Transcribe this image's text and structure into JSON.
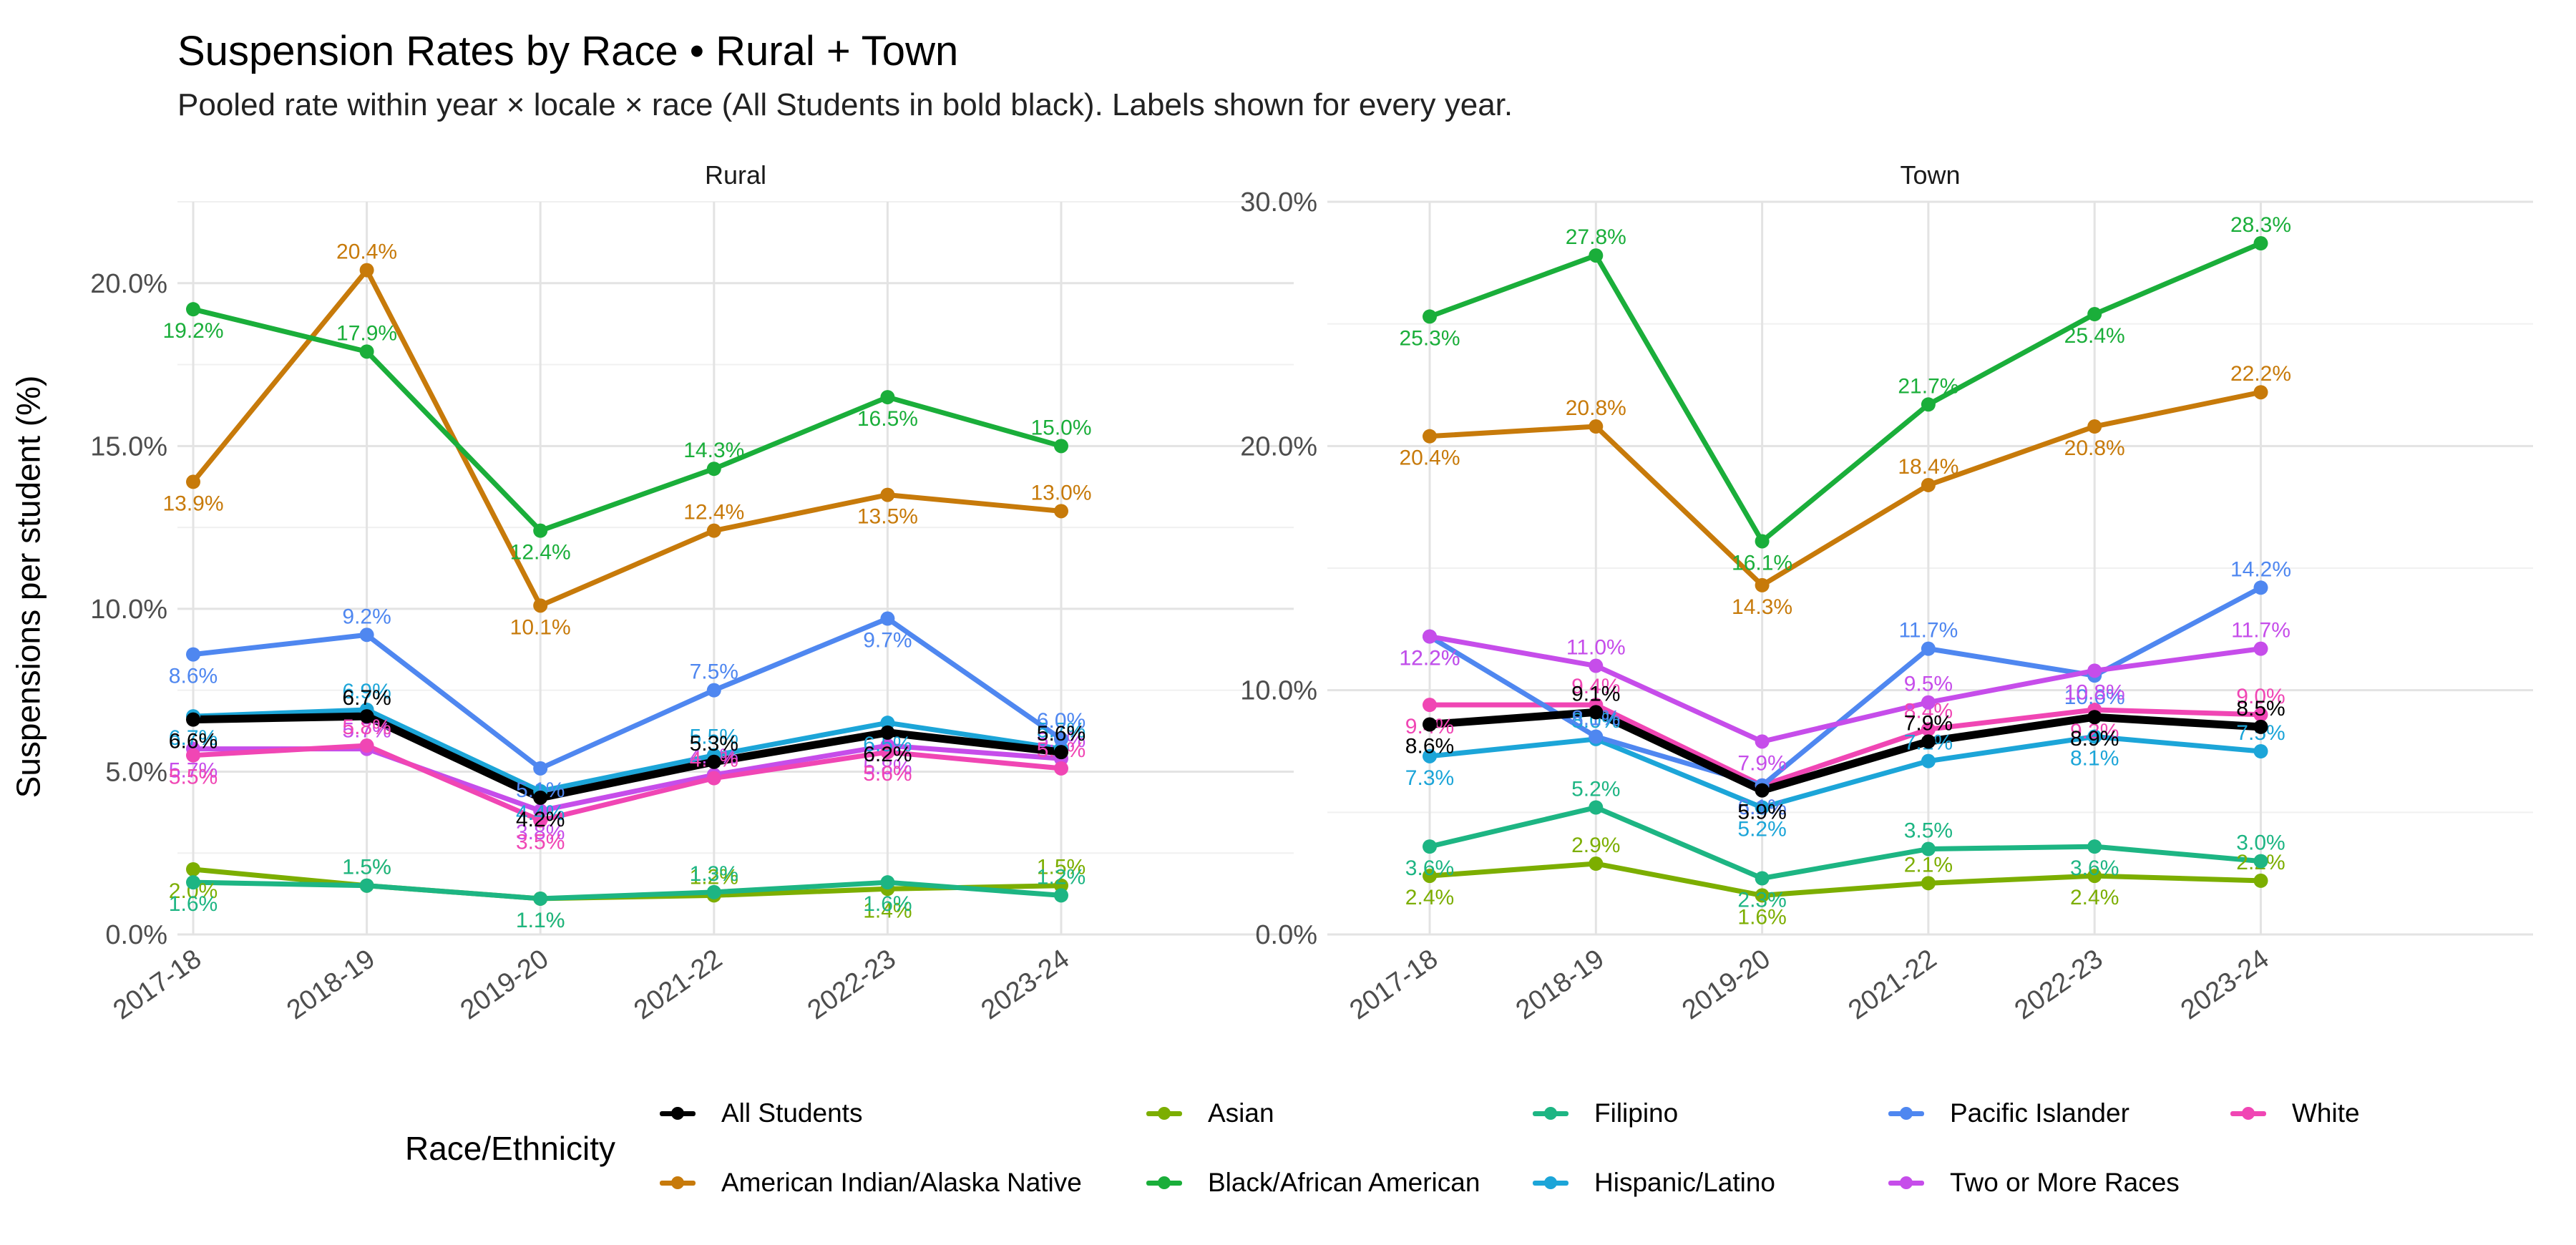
{
  "title": "Suspension Rates by Race • Rural + Town",
  "subtitle": "Pooled rate within year × locale × race (All Students in bold black). Labels shown for every year.",
  "ylabel": "Suspensions per student (%)",
  "legend": {
    "title": "Race/Ethnicity",
    "items": [
      {
        "name": "All Students",
        "color": "#000000"
      },
      {
        "name": "Asian",
        "color": "#7CAE00"
      },
      {
        "name": "Filipino",
        "color": "#1DB583"
      },
      {
        "name": "Pacific Islander",
        "color": "#4F87F0"
      },
      {
        "name": "White",
        "color": "#F046B4"
      },
      {
        "name": "American Indian/Alaska Native",
        "color": "#C77A0A"
      },
      {
        "name": "Black/African American",
        "color": "#1AAE3A"
      },
      {
        "name": "Hispanic/Latino",
        "color": "#1CA5D8"
      },
      {
        "name": "Two or More Races",
        "color": "#C64DEA"
      }
    ]
  },
  "chart_data": [
    {
      "type": "line",
      "panel": "Rural",
      "categories": [
        "2017-18",
        "2018-19",
        "2019-20",
        "2021-22",
        "2022-23",
        "2023-24"
      ],
      "ylim": [
        0,
        22.5
      ],
      "yticks": [
        "0.0%",
        "5.0%",
        "10.0%",
        "15.0%",
        "20.0%"
      ],
      "ytick_values": [
        0,
        5,
        10,
        15,
        20
      ],
      "series": [
        {
          "name": "Asian",
          "values": [
            2.0,
            1.5,
            1.1,
            1.2,
            1.4,
            1.5
          ]
        },
        {
          "name": "Filipino",
          "values": [
            1.6,
            1.5,
            1.1,
            1.3,
            1.6,
            1.2
          ]
        },
        {
          "name": "Two or More Races",
          "values": [
            5.7,
            5.7,
            3.8,
            4.9,
            5.8,
            5.4
          ]
        },
        {
          "name": "White",
          "values": [
            5.5,
            5.8,
            3.5,
            4.8,
            5.6,
            5.1
          ]
        },
        {
          "name": "Hispanic/Latino",
          "values": [
            6.7,
            6.9,
            4.4,
            5.5,
            6.5,
            5.7
          ]
        },
        {
          "name": "Pacific Islander",
          "values": [
            8.6,
            9.2,
            5.1,
            7.5,
            9.7,
            6.0
          ]
        },
        {
          "name": "American Indian/Alaska Native",
          "values": [
            13.9,
            20.4,
            10.1,
            12.4,
            13.5,
            13.0
          ]
        },
        {
          "name": "Black/African American",
          "values": [
            19.2,
            17.9,
            12.4,
            14.3,
            16.5,
            15.0
          ]
        },
        {
          "name": "All Students",
          "values": [
            6.6,
            6.7,
            4.2,
            5.3,
            6.2,
            5.6
          ]
        }
      ]
    },
    {
      "type": "line",
      "panel": "Town",
      "categories": [
        "2017-18",
        "2018-19",
        "2019-20",
        "2021-22",
        "2022-23",
        "2023-24"
      ],
      "ylim": [
        0,
        30
      ],
      "yticks": [
        "0.0%",
        "10.0%",
        "20.0%",
        "30.0%"
      ],
      "ytick_values": [
        0,
        10,
        20,
        30
      ],
      "series": [
        {
          "name": "Asian",
          "values": [
            2.4,
            2.9,
            1.6,
            2.1,
            2.4,
            2.2
          ]
        },
        {
          "name": "Filipino",
          "values": [
            3.6,
            5.2,
            2.3,
            3.5,
            3.6,
            3.0
          ]
        },
        {
          "name": "Hispanic/Latino",
          "values": [
            7.3,
            8.0,
            5.2,
            7.1,
            8.1,
            7.5
          ]
        },
        {
          "name": "White",
          "values": [
            9.4,
            9.4,
            6.1,
            8.4,
            9.2,
            9.0
          ]
        },
        {
          "name": "Pacific Islander",
          "values": [
            12.2,
            8.1,
            6.1,
            11.7,
            10.6,
            14.2
          ]
        },
        {
          "name": "Two or More Races",
          "values": [
            12.2,
            11.0,
            7.9,
            9.5,
            10.8,
            11.7
          ]
        },
        {
          "name": "American Indian/Alaska Native",
          "values": [
            20.4,
            20.8,
            14.3,
            18.4,
            20.8,
            22.2
          ]
        },
        {
          "name": "Black/African American",
          "values": [
            25.3,
            27.8,
            16.1,
            21.7,
            25.4,
            28.3
          ]
        },
        {
          "name": "All Students",
          "values": [
            8.6,
            9.1,
            5.9,
            7.9,
            8.9,
            8.5
          ]
        }
      ]
    }
  ]
}
